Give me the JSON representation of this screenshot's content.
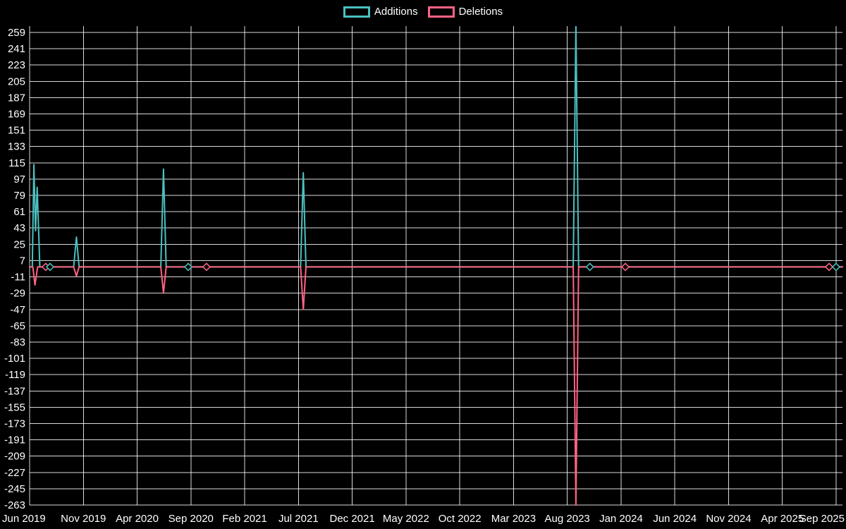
{
  "chart_data": {
    "type": "line",
    "legend_position": "top",
    "grid": true,
    "colors": {
      "background": "#000000",
      "grid": "rgba(255,255,255,0.85)",
      "text": "#ffffff",
      "additions": "#4bc0c0",
      "deletions": "#ff6384"
    },
    "x_tick_labels": [
      "Jun 2019",
      "Nov 2019",
      "Apr 2020",
      "Sep 2020",
      "Feb 2021",
      "Jul 2021",
      "Dec 2021",
      "May 2022",
      "Oct 2022",
      "Mar 2023",
      "Aug 2023",
      "Jan 2024",
      "Jun 2024",
      "Nov 2024",
      "Apr 2025",
      "Sep 2025"
    ],
    "y_tick_labels": [
      "259",
      "241",
      "223",
      "205",
      "187",
      "169",
      "151",
      "133",
      "115",
      "97",
      "79",
      "61",
      "43",
      "25",
      "7",
      "-11",
      "-29",
      "-47",
      "-65",
      "-83",
      "-101",
      "-119",
      "-137",
      "-155",
      "-173",
      "-191",
      "-209",
      "-227",
      "-245",
      "-263"
    ],
    "y_axis": {
      "min": -263,
      "max": 259,
      "tick_step": 18
    },
    "x_axis": {
      "unit": "months since Jun 2019",
      "min": 0,
      "max": 75,
      "tick_interval_months": 5
    },
    "series": [
      {
        "name": "Additions",
        "color": "#4bc0c0",
        "points": [
          {
            "t": 0.0,
            "v": 0
          },
          {
            "t": 0.25,
            "v": 0
          },
          {
            "t": 0.4,
            "v": 113
          },
          {
            "t": 0.55,
            "v": 40
          },
          {
            "t": 0.7,
            "v": 88
          },
          {
            "t": 0.95,
            "v": 0
          },
          {
            "t": 4.1,
            "v": 0
          },
          {
            "t": 4.35,
            "v": 33
          },
          {
            "t": 4.6,
            "v": 0
          },
          {
            "t": 12.2,
            "v": 0
          },
          {
            "t": 12.45,
            "v": 108
          },
          {
            "t": 12.7,
            "v": 0
          },
          {
            "t": 25.2,
            "v": 0
          },
          {
            "t": 25.45,
            "v": 104
          },
          {
            "t": 25.7,
            "v": 0
          },
          {
            "t": 50.55,
            "v": 0
          },
          {
            "t": 50.8,
            "v": 268
          },
          {
            "t": 51.05,
            "v": 0
          },
          {
            "t": 75.6,
            "v": 0
          }
        ]
      },
      {
        "name": "Deletions",
        "color": "#ff6384",
        "points": [
          {
            "t": 0.0,
            "v": 0
          },
          {
            "t": 0.3,
            "v": 0
          },
          {
            "t": 0.5,
            "v": -20
          },
          {
            "t": 0.75,
            "v": 0
          },
          {
            "t": 4.1,
            "v": 0
          },
          {
            "t": 4.35,
            "v": -10
          },
          {
            "t": 4.6,
            "v": 0
          },
          {
            "t": 12.2,
            "v": 0
          },
          {
            "t": 12.45,
            "v": -29
          },
          {
            "t": 12.7,
            "v": 0
          },
          {
            "t": 25.2,
            "v": 0
          },
          {
            "t": 25.45,
            "v": -47
          },
          {
            "t": 25.7,
            "v": 0
          },
          {
            "t": 50.55,
            "v": 0
          },
          {
            "t": 50.8,
            "v": -263
          },
          {
            "t": 51.05,
            "v": 0
          },
          {
            "t": 75.6,
            "v": 0
          }
        ]
      }
    ],
    "markers": [
      {
        "series": 1,
        "t": 1.5,
        "v": 0
      },
      {
        "series": 0,
        "t": 1.9,
        "v": 0
      },
      {
        "series": 0,
        "t": 14.75,
        "v": 0
      },
      {
        "series": 1,
        "t": 16.45,
        "v": 0
      },
      {
        "series": 0,
        "t": 52.1,
        "v": 0
      },
      {
        "series": 1,
        "t": 55.4,
        "v": 0
      },
      {
        "series": 1,
        "t": 74.35,
        "v": 0
      },
      {
        "series": 0,
        "t": 75.0,
        "v": 0
      }
    ]
  }
}
